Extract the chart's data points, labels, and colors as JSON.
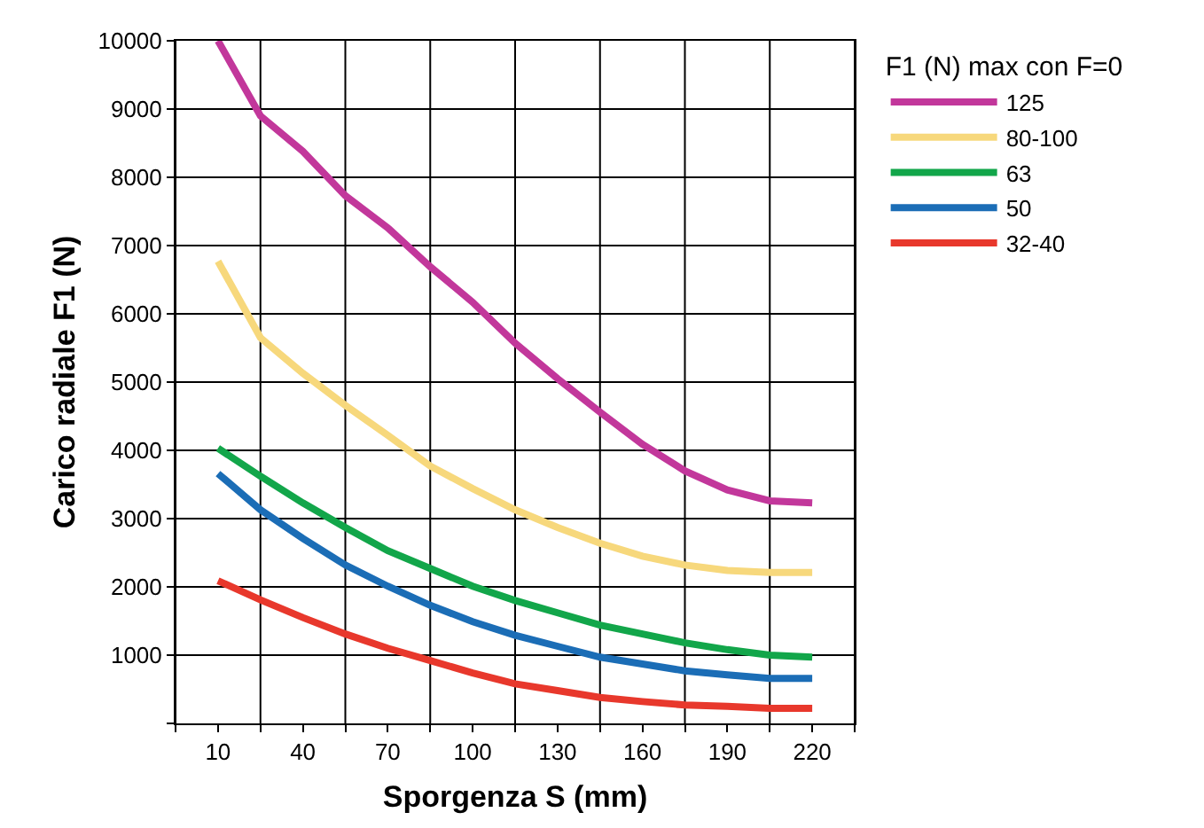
{
  "chart_data": {
    "type": "line",
    "xlabel": "Sporgenza S (mm)",
    "ylabel": "Carico radiale F1 (N)",
    "legend_title": "F1 (N) max con F=0",
    "legend": "right",
    "grid": true,
    "marker": "none",
    "line_style": "solid",
    "x": [
      10,
      25,
      40,
      55,
      70,
      85,
      100,
      115,
      130,
      145,
      160,
      175,
      190,
      205,
      220
    ],
    "xlim": [
      -5,
      235
    ],
    "xticks": [
      {
        "value": -5,
        "label": null
      },
      10,
      {
        "value": 25,
        "label": null
      },
      40,
      {
        "value": 55,
        "label": null
      },
      70,
      {
        "value": 85,
        "label": null
      },
      100,
      {
        "value": 115,
        "label": null
      },
      130,
      {
        "value": 145,
        "label": null
      },
      160,
      {
        "value": 175,
        "label": null
      },
      190,
      {
        "value": 205,
        "label": null
      },
      220,
      {
        "value": 235,
        "label": null
      }
    ],
    "ylim": [
      0,
      10000
    ],
    "yticks": [
      {
        "value": 0,
        "label": null
      },
      1000,
      2000,
      3000,
      4000,
      5000,
      6000,
      7000,
      8000,
      9000,
      10000
    ],
    "series": [
      {
        "name": "125",
        "color": "#c2379b",
        "values": [
          10000,
          8900,
          8380,
          7730,
          7260,
          6690,
          6170,
          5570,
          5050,
          4560,
          4090,
          3700,
          3420,
          3260,
          3230
        ]
      },
      {
        "name": "80-100",
        "color": "#f7d87c",
        "values": [
          6770,
          5650,
          5130,
          4660,
          4220,
          3770,
          3440,
          3130,
          2870,
          2640,
          2450,
          2320,
          2240,
          2210,
          2210
        ]
      },
      {
        "name": "63",
        "color": "#12a64a",
        "values": [
          4030,
          3620,
          3230,
          2870,
          2530,
          2270,
          2010,
          1800,
          1620,
          1440,
          1310,
          1180,
          1080,
          1000,
          970
        ]
      },
      {
        "name": "50",
        "color": "#1b6db6",
        "values": [
          3660,
          3130,
          2710,
          2320,
          2010,
          1730,
          1490,
          1290,
          1130,
          970,
          870,
          770,
          710,
          660,
          660
        ]
      },
      {
        "name": "32-40",
        "color": "#e8382c",
        "values": [
          2090,
          1810,
          1550,
          1310,
          1100,
          920,
          740,
          580,
          480,
          380,
          320,
          270,
          250,
          220,
          220
        ]
      }
    ]
  }
}
